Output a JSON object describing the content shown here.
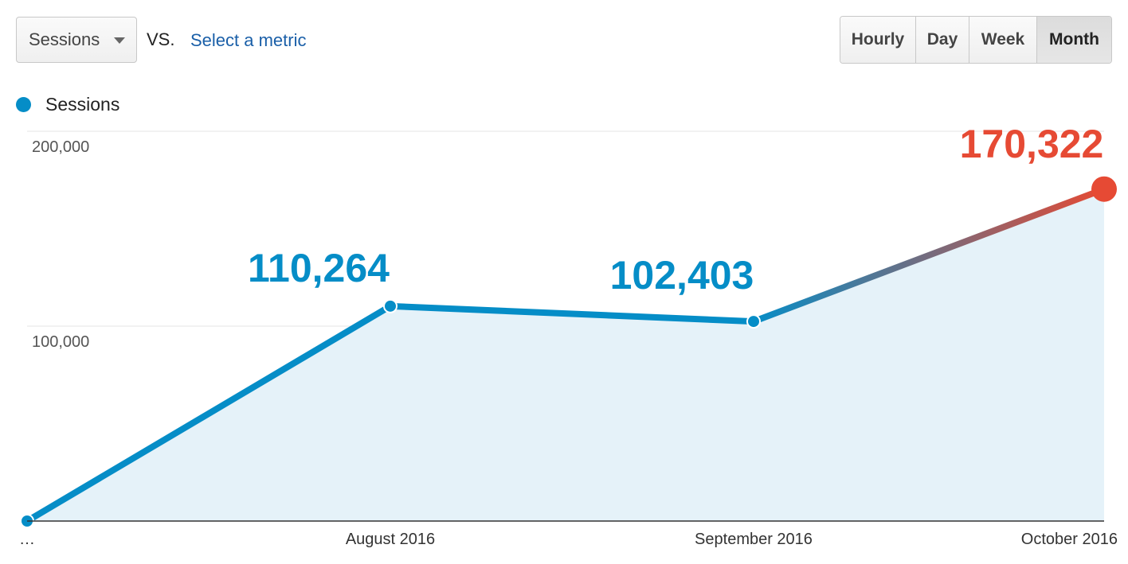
{
  "controls": {
    "metric_select": "Sessions",
    "vs_label": "VS.",
    "compare_link": "Select a metric",
    "granularity": [
      {
        "label": "Hourly",
        "active": false
      },
      {
        "label": "Day",
        "active": false
      },
      {
        "label": "Week",
        "active": false
      },
      {
        "label": "Month",
        "active": true
      }
    ]
  },
  "legend": {
    "label": "Sessions",
    "color": "#058dc7"
  },
  "colors": {
    "line": "#058dc7",
    "highlight": "#e64a34",
    "area": "#e5f2f9",
    "grid": "#e6e6e6"
  },
  "chart_data": {
    "type": "line",
    "title": "",
    "xlabel": "",
    "ylabel": "",
    "categories": [
      "…",
      "August 2016",
      "September 2016",
      "October 2016"
    ],
    "series": [
      {
        "name": "Sessions",
        "values": [
          0,
          110264,
          102403,
          170322
        ]
      }
    ],
    "y_ticks": [
      "200,000",
      "100,000"
    ],
    "data_labels": [
      "110,264",
      "102,403",
      "170,322"
    ],
    "ylim": [
      0,
      200000
    ],
    "grid": true,
    "legend_position": "top-left",
    "area_fill": true
  }
}
